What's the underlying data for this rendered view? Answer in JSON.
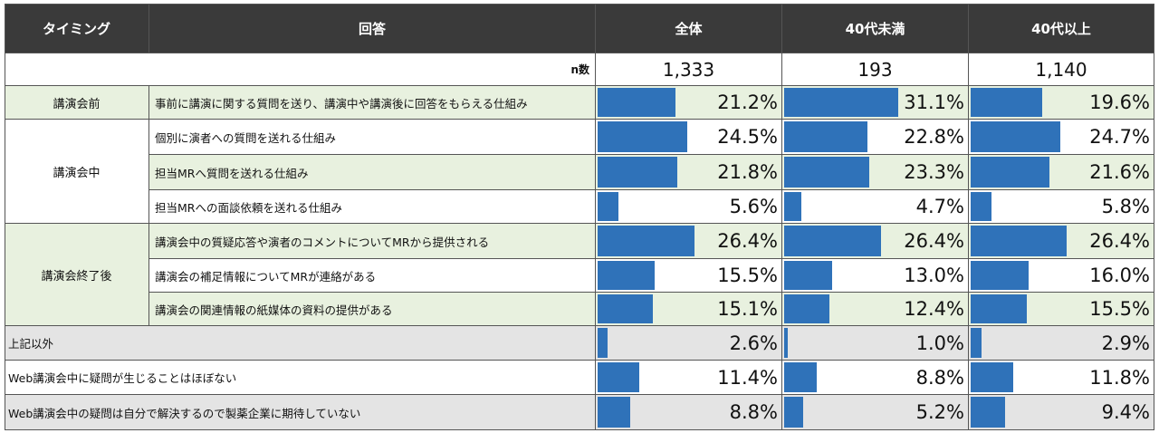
{
  "headers": {
    "timing": "タイミング",
    "answer": "回答",
    "cols": [
      "全体",
      "40代未満",
      "40代以上"
    ]
  },
  "n_label": "n数",
  "n_values": [
    "1,333",
    "193",
    "1,140"
  ],
  "groups": [
    {
      "timing": "講演会前",
      "shade": "green"
    },
    {
      "timing": "講演会中",
      "shade": "white"
    },
    {
      "timing": "講演会終了後",
      "shade": "green"
    }
  ],
  "rows": [
    {
      "answer": "事前に講演に関する質問を送り、講演中や講演後に回答をもらえる仕組み",
      "values": [
        "21.2%",
        "31.1%",
        "19.6%"
      ]
    },
    {
      "answer": "個別に演者への質問を送れる仕組み",
      "values": [
        "24.5%",
        "22.8%",
        "24.7%"
      ]
    },
    {
      "answer": "担当MRへ質問を送れる仕組み",
      "values": [
        "21.8%",
        "23.3%",
        "21.6%"
      ]
    },
    {
      "answer": "担当MRへの面談依頼を送れる仕組み",
      "values": [
        "5.6%",
        "4.7%",
        "5.8%"
      ]
    },
    {
      "answer": "講演会中の質疑応答や演者のコメントについてMRから提供される",
      "values": [
        "26.4%",
        "26.4%",
        "26.4%"
      ]
    },
    {
      "answer": "講演会の補足情報についてMRが連絡がある",
      "values": [
        "15.5%",
        "13.0%",
        "16.0%"
      ]
    },
    {
      "answer": "講演会の関連情報の紙媒体の資料の提供がある",
      "values": [
        "15.1%",
        "12.4%",
        "15.5%"
      ]
    },
    {
      "answer": "上記以外",
      "values": [
        "2.6%",
        "1.0%",
        "2.9%"
      ]
    },
    {
      "answer": "Web講演会中に疑問が生じることはほぼない",
      "values": [
        "11.4%",
        "8.8%",
        "11.8%"
      ]
    },
    {
      "answer": "Web講演会中の疑問は自分で解決するので製薬企業に期待していない",
      "values": [
        "8.8%",
        "5.2%",
        "9.4%"
      ]
    }
  ],
  "chart_data": {
    "type": "table",
    "columns": [
      "全体",
      "40代未満",
      "40代以上"
    ],
    "n": [
      1333,
      193,
      1140
    ],
    "categories": [
      "事前に講演に関する質問を送り、講演中や講演後に回答をもらえる仕組み",
      "個別に演者への質問を送れる仕組み",
      "担当MRへ質問を送れる仕組み",
      "担当MRへの面談依頼を送れる仕組み",
      "講演会中の質疑応答や演者のコメントについてMRから提供される",
      "講演会の補足情報についてMRが連絡がある",
      "講演会の関連情報の紙媒体の資料の提供がある",
      "上記以外",
      "Web講演会中に疑問が生じることはほぼない",
      "Web講演会中の疑問は自分で解決するので製薬企業に期待していない"
    ],
    "series": [
      {
        "name": "全体",
        "values": [
          21.2,
          24.5,
          21.8,
          5.6,
          26.4,
          15.5,
          15.1,
          2.6,
          11.4,
          8.8
        ]
      },
      {
        "name": "40代未満",
        "values": [
          31.1,
          22.8,
          23.3,
          4.7,
          26.4,
          13.0,
          12.4,
          1.0,
          8.8,
          5.2
        ]
      },
      {
        "name": "40代以上",
        "values": [
          19.6,
          24.7,
          21.6,
          5.8,
          26.4,
          16.0,
          15.5,
          2.9,
          11.8,
          9.4
        ]
      }
    ],
    "bar_color": "#2f72b9",
    "header_color": "#3a3a3a",
    "group_colors": {
      "green": "#e8f1df",
      "white": "#ffffff",
      "gray": "#e4e4e4"
    }
  }
}
